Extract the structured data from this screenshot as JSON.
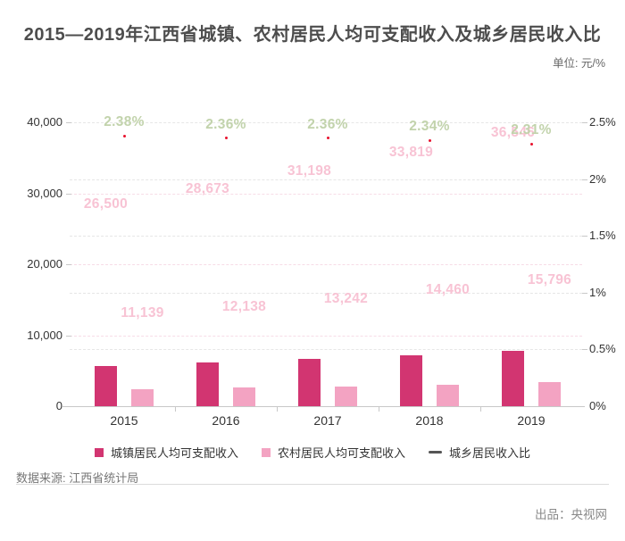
{
  "header": {
    "title": "2015—2019年江西省城镇、农村居民人均可支配收入及城乡居民收入比",
    "unit_label": "单位: 元/%"
  },
  "chart_data": {
    "type": "bar",
    "title": "2015—2019年江西省城镇、农村居民人均可支配收入及城乡居民收入比",
    "categories": [
      "2015",
      "2016",
      "2017",
      "2018",
      "2019"
    ],
    "series": [
      {
        "name": "城镇居民人均可支配收入",
        "type": "bar",
        "axis": "left",
        "color": "#d23571",
        "label_color": "#f8c3d4",
        "values": [
          26500,
          28673,
          31198,
          33819,
          36546
        ],
        "labels": [
          "26,500",
          "28,673",
          "31,198",
          "33,819",
          "36,546"
        ]
      },
      {
        "name": "农村居民人均可支配收入",
        "type": "bar",
        "axis": "left",
        "color": "#f3a3c2",
        "label_color": "#f8c3d4",
        "values": [
          11139,
          12138,
          13242,
          14460,
          15796
        ],
        "labels": [
          "11,139",
          "12,138",
          "13,242",
          "14,460",
          "15,796"
        ]
      },
      {
        "name": "城乡居民收入比",
        "type": "line",
        "axis": "right",
        "color": "#e8112d",
        "legend_marker_color": "#555555",
        "label_color": "#c2d3ac",
        "values": [
          2.38,
          2.36,
          2.36,
          2.34,
          2.31
        ],
        "labels": [
          "2.38%",
          "2.36%",
          "2.36%",
          "2.34%",
          "2.31%"
        ]
      }
    ],
    "left_axis": {
      "ylim": [
        0,
        40000
      ],
      "ticks": [
        0,
        10000,
        20000,
        30000,
        40000
      ],
      "tick_labels": [
        "0",
        "10,000",
        "20,000",
        "30,000",
        "40,000"
      ]
    },
    "right_axis": {
      "ylim": [
        0,
        2.5
      ],
      "ticks": [
        0,
        0.5,
        1,
        1.5,
        2,
        2.5
      ],
      "tick_labels": [
        "0%",
        "0.5%",
        "1%",
        "1.5%",
        "2%",
        "2.5%"
      ]
    },
    "grid": true,
    "legend_position": "bottom",
    "bar_render_scale": 0.213
  },
  "footer": {
    "source": "数据来源: 江西省统计局",
    "credit": "出品：央视网"
  }
}
